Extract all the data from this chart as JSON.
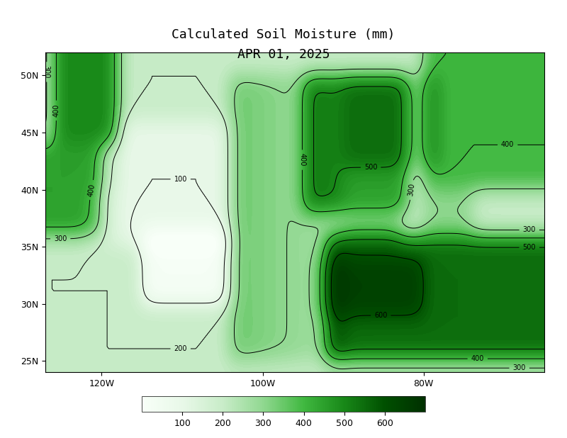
{
  "title_line1": "Calculated Soil Moisture (mm)",
  "title_line2": "APR 01, 2025",
  "colorbar_levels": [
    100,
    200,
    300,
    400,
    500,
    600
  ],
  "contour_levels": [
    100,
    200,
    300,
    400,
    500,
    600
  ],
  "vmin": 0,
  "vmax": 700,
  "colors": [
    "#f5fff5",
    "#e0f5e0",
    "#c0ecc0",
    "#90d890",
    "#50c050",
    "#20a020",
    "#006000"
  ],
  "lon_min": -127,
  "lon_max": -65,
  "lat_min": 24,
  "lat_max": 52,
  "xticks": [
    -120,
    -100,
    -80
  ],
  "xtick_labels": [
    "120W",
    "100W",
    "80W"
  ],
  "yticks": [
    25,
    30,
    35,
    40,
    45,
    50
  ],
  "ytick_labels": [
    "25N",
    "30N",
    "35N",
    "40N",
    "45N",
    "50N"
  ],
  "fig_width": 8.0,
  "fig_height": 6.18,
  "background_color": "#ffffff"
}
